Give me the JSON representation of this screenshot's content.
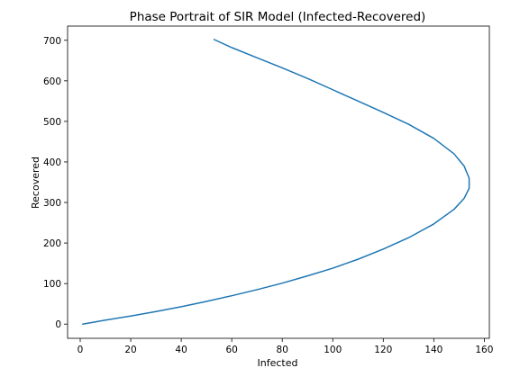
{
  "chart_data": {
    "type": "line",
    "title": "Phase Portrait of SIR Model (Infected-Recovered)",
    "xlabel": "Infected",
    "ylabel": "Recovered",
    "xlim": [
      -5,
      162
    ],
    "ylim": [
      -35,
      735
    ],
    "xticks": [
      0,
      20,
      40,
      60,
      80,
      100,
      120,
      140,
      160
    ],
    "yticks": [
      0,
      100,
      200,
      300,
      400,
      500,
      600,
      700
    ],
    "grid": false,
    "legend": "none",
    "series": [
      {
        "color": "#1f77b4",
        "x": [
          1,
          10,
          20,
          30,
          40,
          50,
          60,
          70,
          80,
          90,
          100,
          110,
          120,
          130,
          140,
          148,
          152,
          154,
          154,
          152,
          148,
          140,
          130,
          120,
          110,
          100,
          90,
          80,
          70,
          60,
          53
        ],
        "y": [
          0,
          10,
          20,
          31,
          43,
          56,
          70,
          85,
          101,
          119,
          138,
          160,
          185,
          213,
          247,
          283,
          310,
          335,
          360,
          390,
          420,
          458,
          493,
          522,
          550,
          578,
          606,
          632,
          657,
          682,
          702
        ]
      }
    ]
  }
}
